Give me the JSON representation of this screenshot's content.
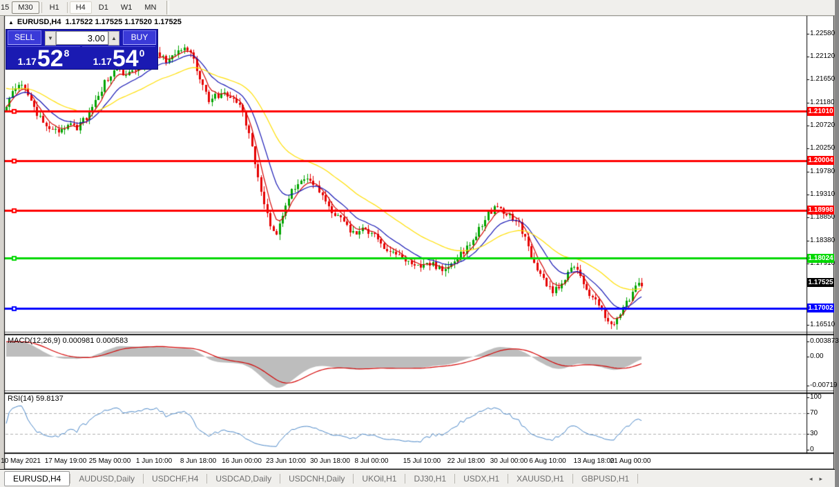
{
  "toolbar": {
    "timeframes": [
      {
        "label": "15",
        "state": "partial"
      },
      {
        "label": "M30",
        "state": "outlined"
      },
      {
        "label": "H1",
        "state": "normal"
      },
      {
        "label": "H4",
        "state": "active"
      },
      {
        "label": "D1",
        "state": "normal"
      },
      {
        "label": "W1",
        "state": "normal"
      },
      {
        "label": "MN",
        "state": "normal"
      }
    ]
  },
  "chart_header": {
    "symbol": "EURUSD,H4",
    "ohlc": "1.17522 1.17525 1.17520 1.17525"
  },
  "trade_panel": {
    "sell_label": "SELL",
    "buy_label": "BUY",
    "volume": "3.00",
    "spin_down_icon": "▼",
    "spin_up_icon": "▲",
    "sell_price_small": "1.17",
    "sell_price_big": "52",
    "sell_price_sup": "8",
    "buy_price_small": "1.17",
    "buy_price_big": "54",
    "buy_price_sup": "0"
  },
  "chart_data": {
    "type": "candlestick",
    "symbol": "EURUSD",
    "timeframe": "H4",
    "colors": {
      "up": "#00a400",
      "down": "#e60000",
      "ma_fast": "#d40000",
      "ma_mid": "#1414b4",
      "ma_slow": "#ffdf00",
      "level_red": "#ff0000",
      "level_green": "#00d800",
      "level_blue": "#0000ff",
      "bid_label_bg": "#000000",
      "macd_hist": "#bdbdbd",
      "macd_signal": "#d40000",
      "rsi_line": "#4a87c8"
    },
    "y_ticks": [
      "1.22580",
      "1.22120",
      "1.21650",
      "1.21180",
      "1.20720",
      "1.20250",
      "1.19780",
      "1.19310",
      "1.18850",
      "1.18380",
      "1.17910",
      "1.16510"
    ],
    "levels": [
      {
        "price": 1.2101,
        "label": "1.21010",
        "color": "#ff0000"
      },
      {
        "price": 1.20004,
        "label": "1.20004",
        "color": "#ff0000"
      },
      {
        "price": 1.18998,
        "label": "1.18998",
        "color": "#ff0000"
      },
      {
        "price": 1.18024,
        "label": "1.18024",
        "color": "#00d800"
      },
      {
        "price": 1.17002,
        "label": "1.17002",
        "color": "#0000ff"
      }
    ],
    "bid": {
      "price": 1.17525,
      "label": "1.17525"
    },
    "x_labels": [
      {
        "t": "10 May 2021",
        "x": 30
      },
      {
        "t": "17 May 19:00",
        "x": 95
      },
      {
        "t": "25 May 00:00",
        "x": 159
      },
      {
        "t": "1 Jun 10:00",
        "x": 223
      },
      {
        "t": "8 Jun 18:00",
        "x": 287
      },
      {
        "t": "16 Jun 00:00",
        "x": 350
      },
      {
        "t": "23 Jun 10:00",
        "x": 414
      },
      {
        "t": "30 Jun 18:00",
        "x": 478
      },
      {
        "t": "8 Jul 00:00",
        "x": 538
      },
      {
        "t": "15 Jul 10:00",
        "x": 611
      },
      {
        "t": "22 Jul 18:00",
        "x": 675
      },
      {
        "t": "30 Jul 00:00",
        "x": 737
      },
      {
        "t": "6 Aug 10:00",
        "x": 793
      },
      {
        "t": "13 Aug 18:00",
        "x": 860
      },
      {
        "t": "21 Aug 00:00",
        "x": 913
      }
    ],
    "price_path": [
      [
        9,
        1.2115
      ],
      [
        20,
        1.215
      ],
      [
        32,
        1.2162
      ],
      [
        45,
        1.212
      ],
      [
        58,
        1.2085
      ],
      [
        72,
        1.2068
      ],
      [
        88,
        1.2062
      ],
      [
        100,
        1.2075
      ],
      [
        112,
        1.2068
      ],
      [
        125,
        1.209
      ],
      [
        140,
        1.2128
      ],
      [
        155,
        1.2168
      ],
      [
        168,
        1.2186
      ],
      [
        182,
        1.2172
      ],
      [
        196,
        1.2182
      ],
      [
        210,
        1.2205
      ],
      [
        225,
        1.2216
      ],
      [
        240,
        1.2202
      ],
      [
        255,
        1.2218
      ],
      [
        268,
        1.2235
      ],
      [
        280,
        1.2205
      ],
      [
        292,
        1.2158
      ],
      [
        302,
        1.212
      ],
      [
        312,
        1.213
      ],
      [
        325,
        1.2138
      ],
      [
        338,
        1.2126
      ],
      [
        350,
        1.2108
      ],
      [
        362,
        1.204
      ],
      [
        372,
        1.1972
      ],
      [
        382,
        1.1912
      ],
      [
        392,
        1.1868
      ],
      [
        400,
        1.1855
      ],
      [
        410,
        1.1888
      ],
      [
        420,
        1.1932
      ],
      [
        432,
        1.1952
      ],
      [
        442,
        1.1966
      ],
      [
        455,
        1.1952
      ],
      [
        468,
        1.1928
      ],
      [
        480,
        1.1898
      ],
      [
        492,
        1.1882
      ],
      [
        504,
        1.1866
      ],
      [
        515,
        1.1846
      ],
      [
        527,
        1.186
      ],
      [
        540,
        1.185
      ],
      [
        552,
        1.1832
      ],
      [
        565,
        1.1816
      ],
      [
        578,
        1.1808
      ],
      [
        590,
        1.1798
      ],
      [
        602,
        1.1793
      ],
      [
        615,
        1.1786
      ],
      [
        628,
        1.1789
      ],
      [
        640,
        1.1779
      ],
      [
        652,
        1.1791
      ],
      [
        663,
        1.1806
      ],
      [
        674,
        1.182
      ],
      [
        685,
        1.1842
      ],
      [
        695,
        1.1864
      ],
      [
        705,
        1.1888
      ],
      [
        715,
        1.1902
      ],
      [
        722,
        1.1906
      ],
      [
        730,
        1.1893
      ],
      [
        740,
        1.1889
      ],
      [
        750,
        1.1873
      ],
      [
        760,
        1.1846
      ],
      [
        770,
        1.1806
      ],
      [
        780,
        1.1773
      ],
      [
        790,
        1.1749
      ],
      [
        800,
        1.1733
      ],
      [
        808,
        1.1743
      ],
      [
        818,
        1.1763
      ],
      [
        828,
        1.1779
      ],
      [
        838,
        1.1773
      ],
      [
        848,
        1.1743
      ],
      [
        858,
        1.1721
      ],
      [
        868,
        1.1699
      ],
      [
        878,
        1.1679
      ],
      [
        888,
        1.1666
      ],
      [
        896,
        1.1683
      ],
      [
        904,
        1.1701
      ],
      [
        912,
        1.1723
      ],
      [
        920,
        1.1741
      ],
      [
        929,
        1.1752
      ]
    ],
    "moving_averages": [
      {
        "period": 5,
        "color": "#d40000"
      },
      {
        "period": 13,
        "color": "#1414b4"
      },
      {
        "period": 34,
        "color": "#ffdf00"
      }
    ],
    "macd": {
      "label": "MACD(12,26,9) 0.000981 0.000583",
      "fast": 12,
      "slow": 26,
      "signal": 9,
      "scale_top": "0.003873",
      "scale_zero": "0.00",
      "scale_bottom": "-0.00719",
      "scale_top_value": 0.003873,
      "scale_bottom_value": -0.00719
    },
    "rsi": {
      "label": "RSI(14) 59.8137",
      "period": 14,
      "current": 59.8137,
      "scale": [
        100,
        70,
        30,
        0
      ],
      "guides": [
        70,
        30
      ]
    }
  },
  "tabs": {
    "items": [
      "EURUSD,H4",
      "AUDUSD,Daily",
      "USDCHF,H4",
      "USDCAD,Daily",
      "USDCNH,Daily",
      "UKOil,H1",
      "DJ30,H1",
      "USDX,H1",
      "XAUUSD,H1",
      "GBPUSD,H1"
    ],
    "active_index": 0,
    "scroll_left_icon": "◂",
    "scroll_right_icon": "▸"
  }
}
